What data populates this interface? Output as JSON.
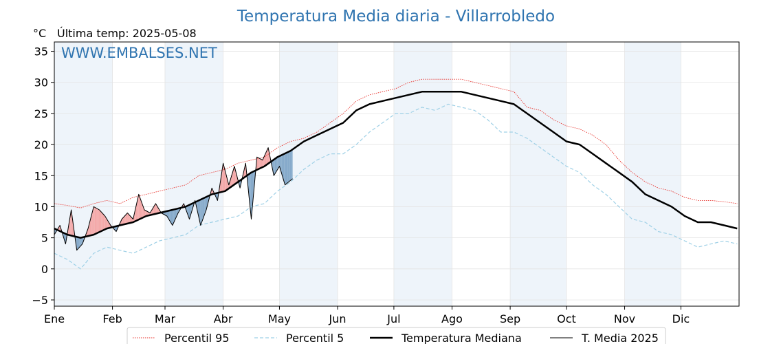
{
  "title": "Temperatura Media diaria - Villarrobledo",
  "unit": "°C",
  "last_temp": "Última temp: 2025-05-08",
  "watermark": "WWW.EMBALSES.NET",
  "legend": {
    "p95": "Percentil 95",
    "p5": "Percentil 5",
    "median": "Temperatura Mediana",
    "current": "T. Media 2025"
  },
  "chart_data": {
    "type": "line",
    "title": "Temperatura Media diaria - Villarrobledo",
    "ylabel": "°C",
    "xlabel": "",
    "ylim": [
      -6,
      36.5
    ],
    "xlim": [
      1,
      366
    ],
    "y_ticks": [
      -5,
      0,
      5,
      10,
      15,
      20,
      25,
      30,
      35
    ],
    "x_tick_labels": [
      "Ene",
      "Feb",
      "Mar",
      "Abr",
      "May",
      "Jun",
      "Jul",
      "Ago",
      "Sep",
      "Oct",
      "Nov",
      "Dic"
    ],
    "x_tick_days": [
      1,
      32,
      60,
      91,
      121,
      152,
      182,
      213,
      244,
      274,
      305,
      335
    ],
    "grid": true,
    "legend_position": "bottom",
    "colors": {
      "p95": "#e8322c",
      "p5": "#9ed0e6",
      "median": "#000000",
      "current": "#000000",
      "above_fill": "#f4a9a9",
      "below_fill": "#86aacb",
      "shade": "#eef4fa"
    },
    "series": [
      {
        "name": "Percentil 95",
        "style": "dotted",
        "x": [
          1,
          8,
          15,
          22,
          29,
          36,
          43,
          50,
          57,
          64,
          71,
          78,
          85,
          92,
          99,
          106,
          113,
          120,
          127,
          134,
          141,
          148,
          155,
          162,
          169,
          176,
          183,
          190,
          197,
          204,
          211,
          218,
          225,
          232,
          239,
          246,
          253,
          260,
          267,
          274,
          281,
          288,
          295,
          302,
          309,
          316,
          323,
          330,
          337,
          344,
          351,
          358,
          365
        ],
        "values": [
          10.5,
          10.2,
          9.8,
          10.5,
          11.0,
          10.5,
          11.5,
          12.0,
          12.5,
          13.0,
          13.5,
          15.0,
          15.5,
          16.0,
          17.0,
          17.5,
          18.0,
          19.5,
          20.5,
          21.0,
          22.0,
          23.5,
          25.0,
          27.0,
          28.0,
          28.5,
          29.0,
          30.0,
          30.5,
          30.5,
          30.5,
          30.5,
          30.0,
          29.5,
          29.0,
          28.5,
          26.0,
          25.5,
          24.0,
          23.0,
          22.5,
          21.5,
          20.0,
          17.5,
          15.5,
          14.0,
          13.0,
          12.5,
          11.5,
          11.0,
          11.0,
          10.8,
          10.5
        ]
      },
      {
        "name": "Percentil 5",
        "style": "dashed",
        "x": [
          1,
          8,
          15,
          22,
          29,
          36,
          43,
          50,
          57,
          64,
          71,
          78,
          85,
          92,
          99,
          106,
          113,
          120,
          127,
          134,
          141,
          148,
          155,
          162,
          169,
          176,
          183,
          190,
          197,
          204,
          211,
          218,
          225,
          232,
          239,
          246,
          253,
          260,
          267,
          274,
          281,
          288,
          295,
          302,
          309,
          316,
          323,
          330,
          337,
          344,
          351,
          358,
          365
        ],
        "values": [
          2.5,
          1.5,
          0.0,
          2.5,
          3.5,
          3.0,
          2.5,
          3.5,
          4.5,
          5.0,
          5.5,
          7.0,
          7.5,
          8.0,
          8.5,
          10.0,
          10.5,
          12.5,
          14.0,
          16.0,
          17.5,
          18.5,
          18.5,
          20.0,
          22.0,
          23.5,
          25.0,
          25.0,
          26.0,
          25.5,
          26.5,
          26.0,
          25.5,
          24.0,
          22.0,
          22.0,
          21.0,
          19.5,
          18.0,
          16.5,
          15.5,
          13.5,
          12.0,
          10.0,
          8.0,
          7.5,
          6.0,
          5.5,
          4.5,
          3.5,
          4.0,
          4.5,
          4.0
        ]
      },
      {
        "name": "Temperatura Mediana",
        "style": "solid-thick",
        "x": [
          1,
          8,
          15,
          22,
          29,
          36,
          43,
          50,
          57,
          64,
          71,
          78,
          85,
          92,
          99,
          106,
          113,
          120,
          127,
          134,
          141,
          148,
          155,
          162,
          169,
          176,
          183,
          190,
          197,
          204,
          211,
          218,
          225,
          232,
          239,
          246,
          253,
          260,
          267,
          274,
          281,
          288,
          295,
          302,
          309,
          316,
          323,
          330,
          337,
          344,
          351,
          358,
          365
        ],
        "values": [
          6.5,
          5.5,
          5.0,
          5.5,
          6.5,
          7.0,
          7.5,
          8.5,
          9.0,
          9.5,
          10.0,
          11.0,
          12.0,
          12.5,
          14.0,
          15.5,
          16.5,
          18.0,
          19.0,
          20.5,
          21.5,
          22.5,
          23.5,
          25.5,
          26.5,
          27.0,
          27.5,
          28.0,
          28.5,
          28.5,
          28.5,
          28.5,
          28.0,
          27.5,
          27.0,
          26.5,
          25.0,
          23.5,
          22.0,
          20.5,
          20.0,
          18.5,
          17.0,
          15.5,
          14.0,
          12.0,
          11.0,
          10.0,
          8.5,
          7.5,
          7.5,
          7.0,
          6.5
        ]
      },
      {
        "name": "T. Media 2025",
        "style": "solid-thin",
        "x": [
          1,
          4,
          7,
          10,
          13,
          16,
          19,
          22,
          25,
          28,
          31,
          34,
          37,
          40,
          43,
          46,
          49,
          52,
          55,
          58,
          61,
          64,
          67,
          70,
          73,
          76,
          79,
          82,
          85,
          88,
          91,
          94,
          97,
          100,
          103,
          106,
          109,
          112,
          115,
          118,
          121,
          124,
          128
        ],
        "values": [
          5.5,
          7.0,
          4.0,
          9.5,
          3.0,
          4.0,
          6.5,
          10.0,
          9.5,
          8.5,
          7.0,
          6.0,
          8.0,
          9.0,
          8.0,
          12.0,
          9.5,
          9.0,
          10.5,
          9.0,
          8.5,
          7.0,
          9.0,
          10.5,
          8.0,
          11.0,
          7.0,
          9.5,
          13.0,
          11.0,
          17.0,
          13.5,
          16.5,
          13.0,
          17.0,
          8.0,
          18.0,
          17.5,
          19.5,
          15.0,
          16.5,
          13.5,
          14.5
        ]
      }
    ]
  }
}
